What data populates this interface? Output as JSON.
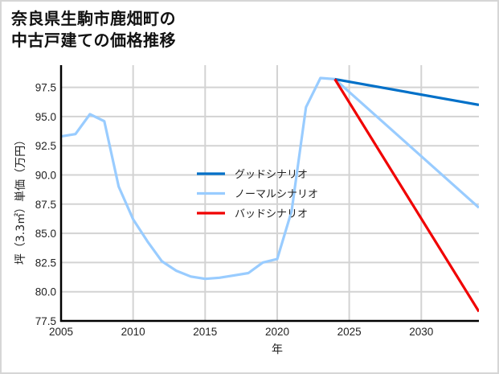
{
  "title": {
    "line1": "奈良県生駒市鹿畑町の",
    "line2": "中古戸建ての価格推移"
  },
  "colors": {
    "good": "#0070c8",
    "normal": "#99ccff",
    "bad": "#f00000",
    "grid": "#d3d3d3",
    "axis": "#000000"
  },
  "chart_data": {
    "type": "line",
    "title": "奈良県生駒市鹿畑町の中古戸建ての価格推移",
    "xlabel": "年",
    "ylabel": "坪（3.3㎡）単価（万円）",
    "xlim": [
      2005,
      2034
    ],
    "ylim": [
      77.5,
      99.4
    ],
    "grid": true,
    "legend_position": "center",
    "x_ticks": [
      2005,
      2010,
      2015,
      2020,
      2025,
      2030
    ],
    "y_ticks": [
      77.5,
      80.0,
      82.5,
      85.0,
      87.5,
      90.0,
      92.5,
      95.0,
      97.5
    ],
    "y_tick_labels": [
      "77.5",
      "80.0",
      "82.5",
      "85.0",
      "87.5",
      "90.0",
      "92.5",
      "95.0",
      "97.5"
    ],
    "series": [
      {
        "name": "グッドシナリオ",
        "color": "#0070c8",
        "x": [
          2024,
          2034
        ],
        "values": [
          98.2,
          96.0
        ]
      },
      {
        "name": "ノーマルシナリオ",
        "color": "#99ccff",
        "x": [
          2005,
          2006,
          2007,
          2008,
          2009,
          2010,
          2011,
          2012,
          2013,
          2014,
          2015,
          2016,
          2017,
          2018,
          2019,
          2020,
          2021,
          2022,
          2023,
          2024,
          2034
        ],
        "values": [
          93.3,
          93.5,
          95.2,
          94.6,
          89.0,
          86.2,
          84.3,
          82.6,
          81.8,
          81.3,
          81.1,
          81.2,
          81.4,
          81.6,
          82.5,
          82.8,
          86.9,
          95.8,
          98.3,
          98.2,
          87.2
        ]
      },
      {
        "name": "バッドシナリオ",
        "color": "#f00000",
        "x": [
          2024,
          2034
        ],
        "values": [
          98.2,
          78.3
        ]
      }
    ]
  }
}
